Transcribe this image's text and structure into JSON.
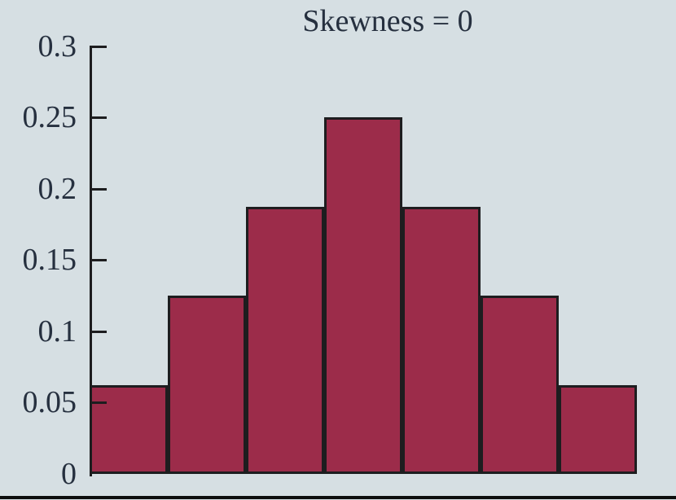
{
  "figure": {
    "title": "Skewness = 0"
  },
  "colors": {
    "background": "#d6dfe3",
    "bar_fill": "#9c2c4a",
    "stroke": "#1d1d1f",
    "text": "#26303f",
    "bottom_rule": "#0e0e0e"
  },
  "chart_data": {
    "type": "bar",
    "title": "Skewness = 0",
    "values": [
      0.0625,
      0.125,
      0.1875,
      0.25,
      0.1875,
      0.125,
      0.0625
    ],
    "ylim": [
      0,
      0.3
    ],
    "y_ticks": [
      0,
      0.05,
      0.1,
      0.15,
      0.2,
      0.25,
      0.3
    ],
    "y_tick_labels": [
      "0",
      "0.05",
      "0.1",
      "0.15",
      "0.2",
      "0.25",
      "0.3"
    ],
    "xlabel": "",
    "ylabel": "",
    "x_tick_labels": [],
    "grid": false,
    "legend": false,
    "bar_gap": 0
  }
}
